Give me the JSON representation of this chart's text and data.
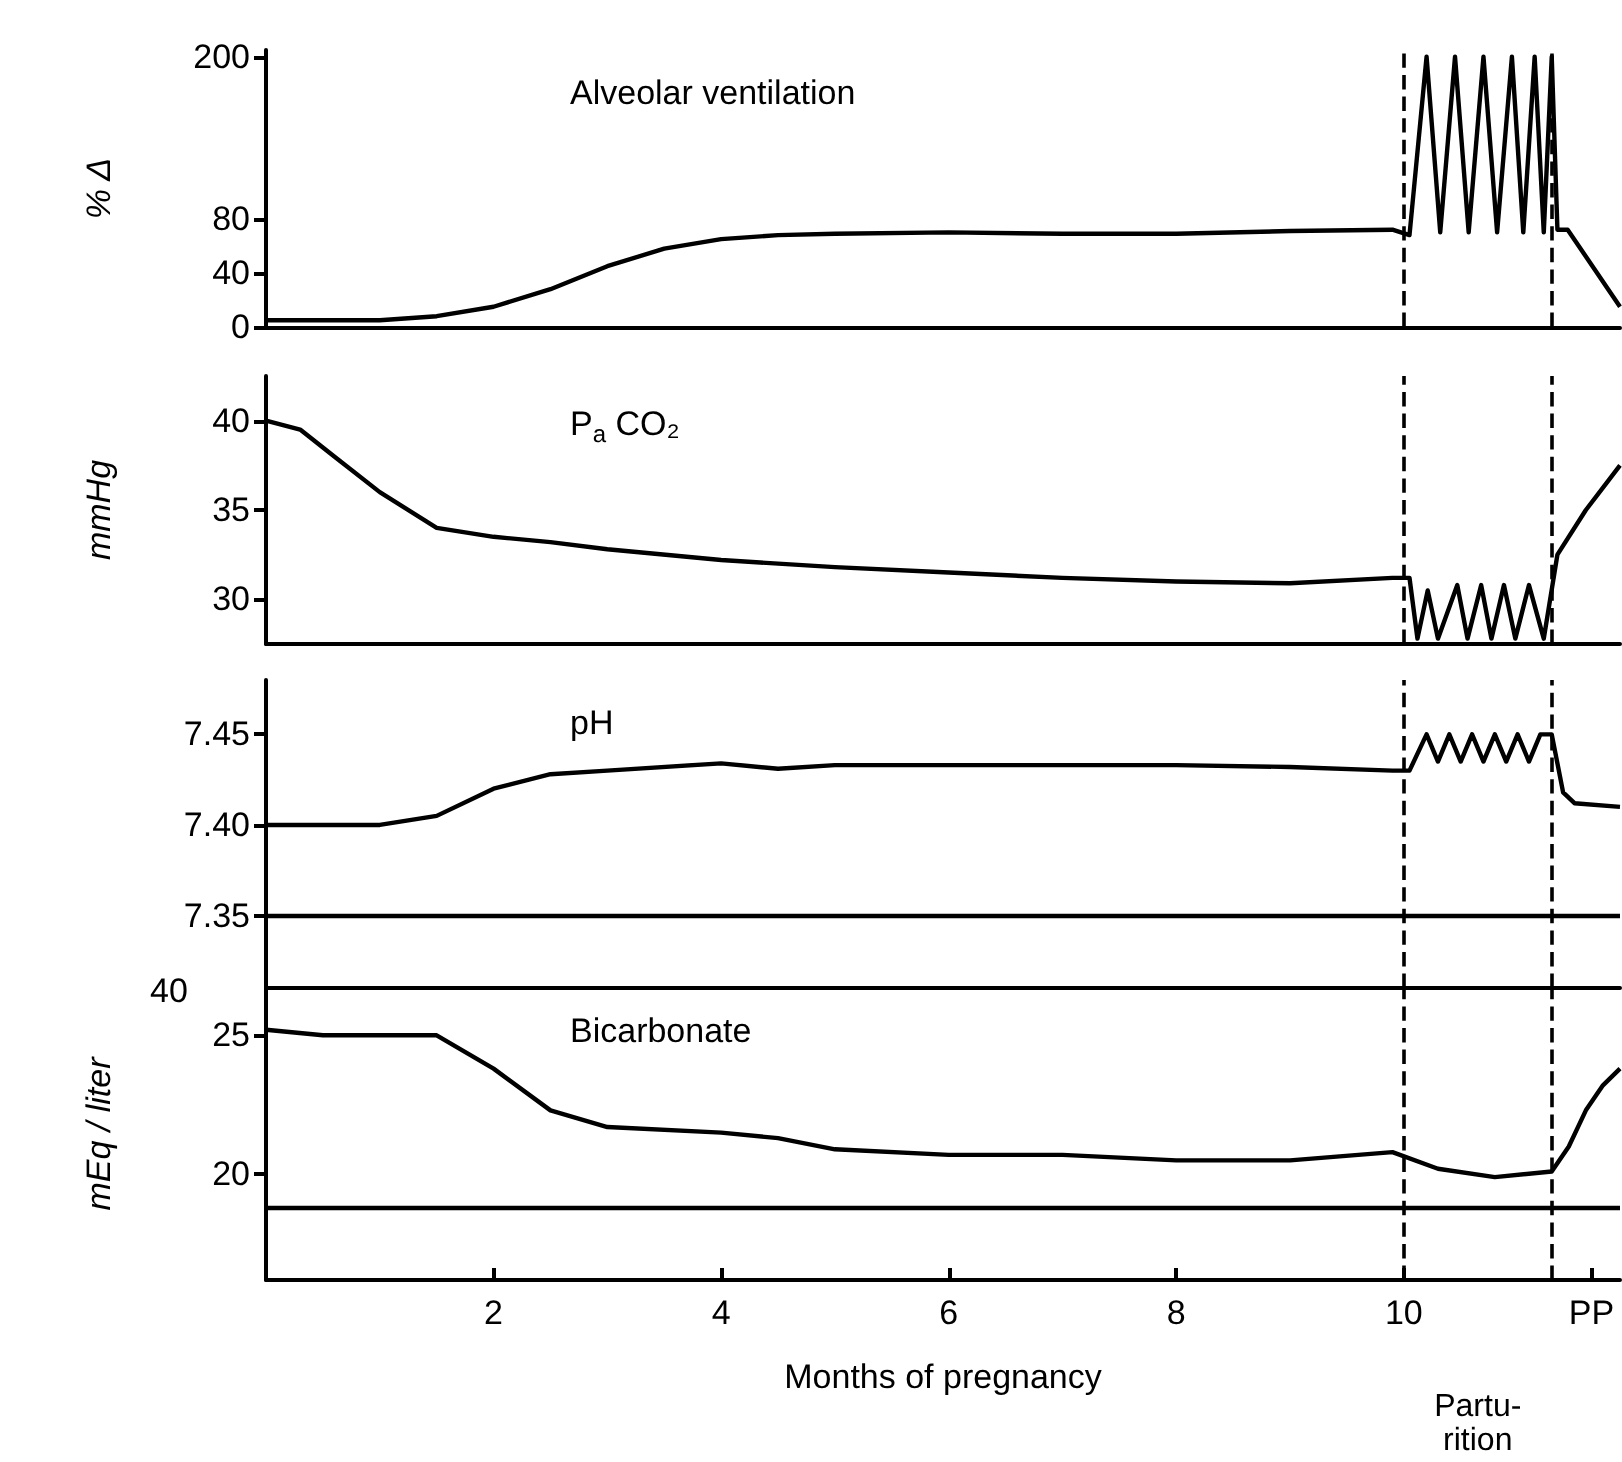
{
  "chart_data": [
    {
      "type": "line",
      "title": "Alveolar ventilation",
      "ylabel": "% Δ",
      "xlim": [
        0,
        11.9
      ],
      "ylim": [
        0,
        205
      ],
      "yticks": [
        0,
        40,
        80,
        200
      ],
      "tick_labels": "y",
      "grid": false,
      "series": [
        {
          "color": "#000000",
          "x": [
            0,
            0.5,
            1,
            1.5,
            2,
            2.5,
            3,
            3.5,
            4,
            4.5,
            5,
            6,
            7,
            8,
            9,
            9.9,
            10.05,
            10.2,
            10.32,
            10.45,
            10.57,
            10.7,
            10.82,
            10.95,
            11.05,
            11.15,
            11.23,
            11.3,
            11.35,
            11.44,
            11.9
          ],
          "values": [
            5,
            5,
            5,
            8,
            15,
            28,
            45,
            58,
            65,
            68,
            69,
            70,
            69,
            69,
            71,
            72,
            68,
            200,
            70,
            200,
            70,
            200,
            70,
            200,
            70,
            200,
            70,
            200,
            72,
            72,
            15
          ]
        }
      ],
      "ref_lines": [
        {
          "axis": "x",
          "value": 10,
          "line_style": "dashed"
        },
        {
          "axis": "x",
          "value": 11.3,
          "line_style": "dashed"
        }
      ]
    },
    {
      "type": "line",
      "title": "P$_{a}$ CO₂",
      "ylabel": "mmHg",
      "xlim": [
        0,
        11.9
      ],
      "ylim": [
        27.5,
        42.5
      ],
      "yticks": [
        30,
        35,
        40
      ],
      "tick_labels": "y",
      "grid": false,
      "series": [
        {
          "color": "#000000",
          "x": [
            0,
            0.3,
            0.6,
            1,
            1.5,
            2,
            2.5,
            3,
            4,
            5,
            6,
            7,
            8,
            9,
            9.9,
            10.05,
            10.12,
            10.21,
            10.3,
            10.47,
            10.56,
            10.68,
            10.77,
            10.88,
            10.98,
            11.1,
            11.23,
            11.35,
            11.6,
            11.9
          ],
          "values": [
            40,
            39.5,
            38,
            36,
            34,
            33.5,
            33.2,
            32.8,
            32.2,
            31.8,
            31.5,
            31.2,
            31,
            30.9,
            31.2,
            31.2,
            27.8,
            30.5,
            27.8,
            30.8,
            27.8,
            30.8,
            27.8,
            30.8,
            27.8,
            30.8,
            27.8,
            32.5,
            35,
            37.5
          ]
        }
      ],
      "ref_lines": [
        {
          "axis": "x",
          "value": 10,
          "line_style": "dashed"
        },
        {
          "axis": "x",
          "value": 11.3,
          "line_style": "dashed"
        }
      ]
    },
    {
      "type": "line",
      "title": "pH",
      "xlim": [
        0,
        11.9
      ],
      "ylim": [
        7.31,
        7.48
      ],
      "yticks": [
        {
          "value": 7.35,
          "label": "7.35"
        },
        {
          "value": 7.4,
          "label": "7.40"
        },
        {
          "value": 7.45,
          "label": "7.45"
        }
      ],
      "tick_labels": "y",
      "grid": false,
      "series": [
        {
          "color": "#000000",
          "x": [
            0,
            1,
            1.5,
            2,
            2.5,
            3,
            4,
            4.5,
            5,
            6,
            7,
            8,
            9,
            9.9,
            10.05,
            10.2,
            10.3,
            10.4,
            10.5,
            10.6,
            10.7,
            10.8,
            10.9,
            11.0,
            11.1,
            11.2,
            11.3,
            11.4,
            11.5,
            11.9
          ],
          "values": [
            7.4,
            7.4,
            7.405,
            7.42,
            7.428,
            7.43,
            7.434,
            7.431,
            7.433,
            7.433,
            7.433,
            7.433,
            7.432,
            7.43,
            7.43,
            7.45,
            7.435,
            7.45,
            7.435,
            7.45,
            7.435,
            7.45,
            7.435,
            7.45,
            7.435,
            7.45,
            7.45,
            7.418,
            7.412,
            7.41
          ]
        }
      ],
      "ref_lines": [
        {
          "axis": "x",
          "value": 10,
          "line_style": "dashed"
        },
        {
          "axis": "x",
          "value": 11.3,
          "line_style": "dashed"
        },
        {
          "axis": "y",
          "value": 7.35,
          "line_style": "solid"
        }
      ],
      "annotations": [
        "40"
      ]
    },
    {
      "type": "line",
      "title": "Bicarbonate",
      "ylabel": "mEq / liter",
      "xlabel": "Months of pregnancy",
      "xlim": [
        0,
        11.9
      ],
      "ylim": [
        16.2,
        26.7
      ],
      "yticks": [
        20,
        25
      ],
      "xticks": [
        2,
        4,
        6,
        8,
        10,
        {
          "value": 11.65,
          "label": "PP"
        }
      ],
      "grid": false,
      "series": [
        {
          "color": "#000000",
          "x": [
            0,
            0.5,
            1,
            1.5,
            2,
            2.5,
            3,
            4,
            4.5,
            5,
            6,
            7,
            8,
            9,
            9.9,
            10.3,
            10.8,
            11.3,
            11.45,
            11.6,
            11.75,
            11.9
          ],
          "values": [
            25.2,
            25,
            25,
            25,
            23.8,
            22.3,
            21.7,
            21.5,
            21.3,
            20.9,
            20.7,
            20.7,
            20.5,
            20.5,
            20.8,
            20.2,
            19.9,
            20.1,
            21,
            22.3,
            23.2,
            23.8
          ]
        }
      ],
      "ref_lines": [
        {
          "axis": "x",
          "value": 10,
          "line_style": "dashed"
        },
        {
          "axis": "x",
          "value": 11.3,
          "line_style": "dashed"
        },
        {
          "axis": "y",
          "value": 18.8,
          "line_style": "solid"
        }
      ],
      "annotations": [
        "Partu-\nrition"
      ]
    }
  ]
}
